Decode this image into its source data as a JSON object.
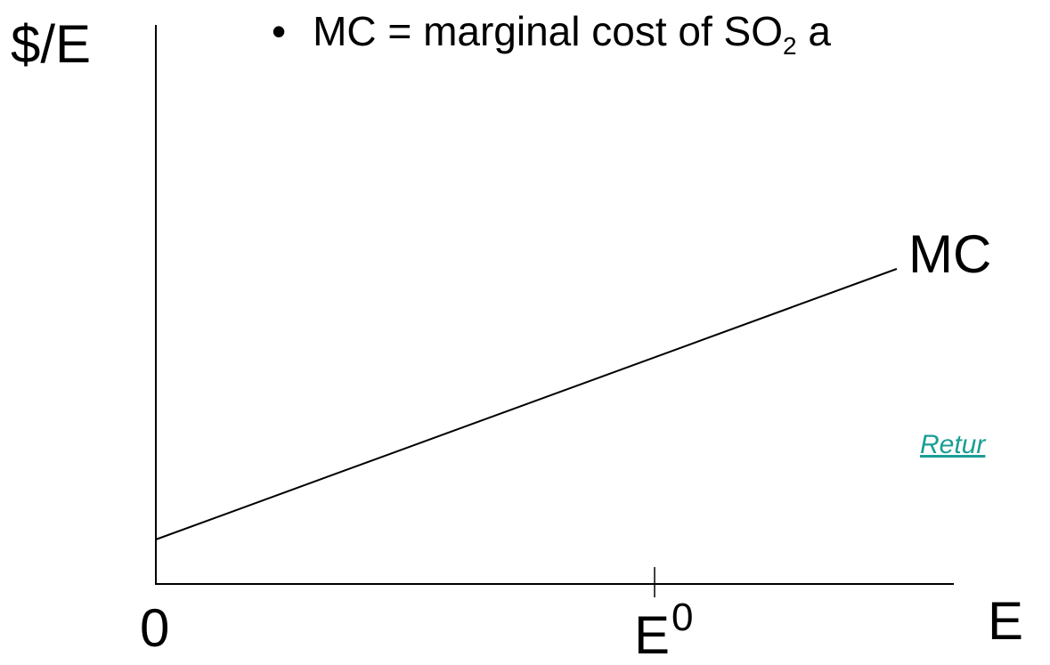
{
  "slide": {
    "bullet": {
      "glyph": "•",
      "text_before_subscript": "MC = marginal cost of SO",
      "subscript": "2",
      "text_after_subscript": " a"
    },
    "link": {
      "label": "Retur",
      "color": "#1a9e94"
    }
  },
  "diagram": {
    "y_axis_label": "$/E",
    "x_axis_label": "E",
    "origin_label": "0",
    "tick_label_base": "E",
    "tick_label_superscript": "0",
    "curve_label": "MC",
    "line_color": "#000000"
  }
}
